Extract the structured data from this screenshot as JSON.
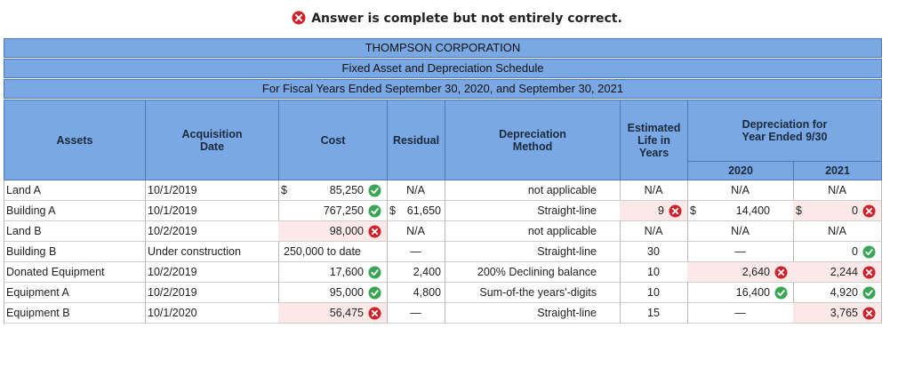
{
  "banner": {
    "text": "Answer is complete but not entirely correct.",
    "status": "incorrect"
  },
  "titles": {
    "company": "THOMPSON CORPORATION",
    "schedule": "Fixed Asset and Depreciation Schedule",
    "period": "For Fiscal Years Ended September 30, 2020, and September 30, 2021"
  },
  "headers": {
    "assets": "Assets",
    "acq1": "Acquisition",
    "acq2": "Date",
    "cost": "Cost",
    "residual": "Residual",
    "method1": "Depreciation",
    "method2": "Method",
    "life1": "Estimated",
    "life2": "Life in",
    "life3": "Years",
    "dep1": "Depreciation for",
    "dep2": "Year Ended 9/30",
    "y2020": "2020",
    "y2021": "2021"
  },
  "colors": {
    "header_bg": "#7aa8e4",
    "correct": "#3aa655",
    "incorrect": "#d0222b",
    "wrong_bg": "#fbe9e9"
  },
  "rows": [
    {
      "asset": "Land A",
      "date": "10/1/2019",
      "cost": {
        "value": "85,250",
        "dollar": "$",
        "status": "correct"
      },
      "residual": {
        "value": "N/A",
        "dollar": "",
        "status": ""
      },
      "method": "not applicable",
      "life": {
        "value": "N/A",
        "status": ""
      },
      "d2020": {
        "value": "N/A",
        "dollar": "",
        "status": ""
      },
      "d2021": {
        "value": "N/A",
        "dollar": "",
        "status": ""
      }
    },
    {
      "asset": "Building A",
      "date": "10/1/2019",
      "cost": {
        "value": "767,250",
        "dollar": "",
        "status": "correct"
      },
      "residual": {
        "value": "61,650",
        "dollar": "$",
        "status": ""
      },
      "method": "Straight-line",
      "life": {
        "value": "9",
        "status": "incorrect"
      },
      "d2020": {
        "value": "14,400",
        "dollar": "$",
        "status": ""
      },
      "d2021": {
        "value": "0",
        "dollar": "$",
        "status": "incorrect"
      }
    },
    {
      "asset": "Land B",
      "date": "10/2/2019",
      "cost": {
        "value": "98,000",
        "dollar": "",
        "status": "incorrect"
      },
      "residual": {
        "value": "N/A",
        "dollar": "",
        "status": ""
      },
      "method": "not applicable",
      "life": {
        "value": "N/A",
        "status": ""
      },
      "d2020": {
        "value": "N/A",
        "dollar": "",
        "status": ""
      },
      "d2021": {
        "value": "N/A",
        "dollar": "",
        "status": ""
      }
    },
    {
      "asset": "Building B",
      "date": "Under construction",
      "cost": {
        "value": "250,000 to date",
        "dollar": "",
        "status": "plain"
      },
      "residual": {
        "value": "—",
        "dollar": "",
        "status": ""
      },
      "method": "Straight-line",
      "life": {
        "value": "30",
        "status": ""
      },
      "d2020": {
        "value": "—",
        "dollar": "",
        "status": ""
      },
      "d2021": {
        "value": "0",
        "dollar": "",
        "status": "correct"
      }
    },
    {
      "asset": "Donated Equipment",
      "date": "10/2/2019",
      "cost": {
        "value": "17,600",
        "dollar": "",
        "status": "correct"
      },
      "residual": {
        "value": "2,400",
        "dollar": "",
        "status": ""
      },
      "method": "200% Declining balance",
      "life": {
        "value": "10",
        "status": ""
      },
      "d2020": {
        "value": "2,640",
        "dollar": "",
        "status": "incorrect"
      },
      "d2021": {
        "value": "2,244",
        "dollar": "",
        "status": "incorrect"
      }
    },
    {
      "asset": "Equipment A",
      "date": "10/2/2019",
      "cost": {
        "value": "95,000",
        "dollar": "",
        "status": "correct"
      },
      "residual": {
        "value": "4,800",
        "dollar": "",
        "status": ""
      },
      "method": "Sum-of-the years'-digits",
      "life": {
        "value": "10",
        "status": ""
      },
      "d2020": {
        "value": "16,400",
        "dollar": "",
        "status": "correct"
      },
      "d2021": {
        "value": "4,920",
        "dollar": "",
        "status": "correct"
      }
    },
    {
      "asset": "Equipment B",
      "date": "10/1/2020",
      "cost": {
        "value": "56,475",
        "dollar": "",
        "status": "incorrect"
      },
      "residual": {
        "value": "—",
        "dollar": "",
        "status": ""
      },
      "method": "Straight-line",
      "life": {
        "value": "15",
        "status": ""
      },
      "d2020": {
        "value": "—",
        "dollar": "",
        "status": ""
      },
      "d2021": {
        "value": "3,765",
        "dollar": "",
        "status": "incorrect"
      }
    }
  ]
}
